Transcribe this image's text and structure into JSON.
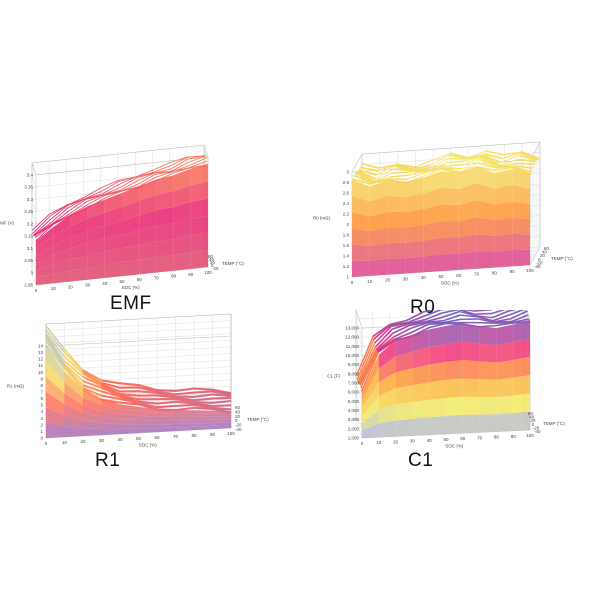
{
  "chart_data": [
    {
      "id": "emf",
      "type": "surface3d",
      "title": "EMF",
      "xlabel": "SOC (%)",
      "ylabel": "TEMP (°C)",
      "zlabel": "EMF (V)",
      "x_ticks": [
        "0",
        "10",
        "20",
        "30",
        "40",
        "50",
        "60",
        "70",
        "80",
        "90",
        "100"
      ],
      "y_ticks": [
        "-20",
        "0",
        "20",
        "40",
        "60"
      ],
      "z_ticks": [
        "3.4",
        "3.35",
        "3.3",
        "3.25",
        "3.2",
        "3.15",
        "3.1",
        "3.05",
        "3",
        "2.95"
      ],
      "zlim": [
        2.95,
        3.4
      ],
      "x": [
        0,
        10,
        20,
        30,
        40,
        50,
        60,
        70,
        80,
        90,
        100
      ],
      "values": [
        3.13,
        3.18,
        3.22,
        3.25,
        3.27,
        3.29,
        3.31,
        3.33,
        3.34,
        3.36,
        3.37
      ],
      "colors": [
        "#e04a6a",
        "#e8206f",
        "#ff8a4a"
      ]
    },
    {
      "id": "r0",
      "type": "surface3d",
      "title": "R0",
      "xlabel": "SOC (%)",
      "ylabel": "TEMP (°C)",
      "zlabel": "R0 (mΩ)",
      "x_ticks": [
        "0",
        "10",
        "20",
        "30",
        "40",
        "50",
        "60",
        "70",
        "80",
        "90",
        "100"
      ],
      "y_ticks": [
        "-40",
        "-20",
        "0",
        "20",
        "40",
        "60"
      ],
      "z_ticks": [
        "3",
        "2.8",
        "2.6",
        "2.4",
        "2.2",
        "2",
        "1.8",
        "1.6",
        "1.4",
        "1.2",
        "1"
      ],
      "zlim": [
        1,
        3
      ],
      "x": [
        0,
        10,
        20,
        30,
        40,
        50,
        60,
        70,
        80,
        90,
        100
      ],
      "values": [
        2.85,
        2.7,
        2.8,
        2.75,
        2.8,
        2.9,
        2.85,
        2.95,
        2.8,
        2.85,
        2.75
      ],
      "colors": [
        "#d83a9a",
        "#ff9030",
        "#f3f070"
      ]
    },
    {
      "id": "r1",
      "type": "surface3d",
      "title": "R1",
      "xlabel": "SOC (%)",
      "ylabel": "TEMP (°C)",
      "zlabel": "R1 (mΩ)",
      "x_ticks": [
        "0",
        "10",
        "20",
        "30",
        "40",
        "50",
        "60",
        "70",
        "80",
        "90",
        "100"
      ],
      "y_ticks": [
        "-40",
        "-20",
        "0",
        "20",
        "40",
        "60"
      ],
      "z_ticks": [
        "14",
        "13",
        "12",
        "11",
        "10",
        "9",
        "8",
        "7",
        "6",
        "5",
        "4",
        "3",
        "2",
        "1",
        "0"
      ],
      "zlim": [
        0,
        14
      ],
      "x": [
        0,
        10,
        20,
        30,
        40,
        50,
        60,
        70,
        80,
        90,
        100
      ],
      "values": [
        14,
        10,
        7,
        5.5,
        4.5,
        4,
        3.5,
        3.2,
        3,
        2.8,
        2.5
      ],
      "colors": [
        "#a070c0",
        "#ff6a5a",
        "#f6e060",
        "#a8b8e0"
      ]
    },
    {
      "id": "c1",
      "type": "surface3d",
      "title": "C1",
      "xlabel": "SOC (%)",
      "ylabel": "TEMP (°C)",
      "zlabel": "C1 (F)",
      "x_ticks": [
        "0",
        "10",
        "20",
        "30",
        "40",
        "50",
        "60",
        "70",
        "80",
        "90",
        "100"
      ],
      "y_ticks": [
        "-40",
        "-20",
        "0",
        "20",
        "40",
        "60"
      ],
      "z_ticks": [
        "13,000",
        "12,000",
        "11,000",
        "10,000",
        "9,000",
        "8,000",
        "7,000",
        "6,000",
        "5,000",
        "4,000",
        "3,000",
        "2,000",
        "1,000"
      ],
      "zlim": [
        1000,
        13000
      ],
      "x": [
        0,
        10,
        20,
        30,
        40,
        50,
        60,
        70,
        80,
        90,
        100
      ],
      "values": [
        6000,
        10000,
        11500,
        12000,
        12500,
        12800,
        13000,
        12600,
        12300,
        12600,
        13000
      ],
      "colors": [
        "#a8b0e8",
        "#f2ea60",
        "#ffa030",
        "#f0307a",
        "#7060c0"
      ]
    }
  ]
}
